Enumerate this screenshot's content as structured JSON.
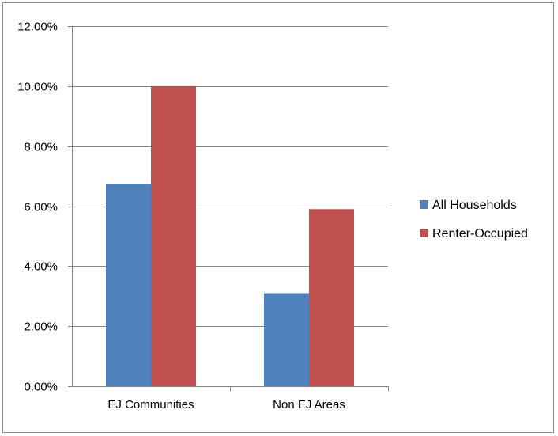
{
  "chart_data": {
    "type": "bar",
    "categories": [
      "EJ Communities",
      "Non EJ Areas"
    ],
    "series": [
      {
        "name": "All Households",
        "values": [
          6.75,
          3.1
        ],
        "color": "#4f81bd"
      },
      {
        "name": "Renter-Occupied",
        "values": [
          10.0,
          5.9
        ],
        "color": "#c0504d"
      }
    ],
    "title": "",
    "xlabel": "",
    "ylabel": "",
    "ylim": [
      0,
      12
    ],
    "yticks": [
      0,
      2,
      4,
      6,
      8,
      10,
      12
    ],
    "ytick_labels": [
      "0.00%",
      "2.00%",
      "4.00%",
      "6.00%",
      "8.00%",
      "10.00%",
      "12.00%"
    ],
    "value_format": "percent",
    "grid": true,
    "legend_position": "right",
    "colors": {
      "gridline": "#868686",
      "axis": "#868686",
      "frame": "#8c8c8c"
    }
  }
}
